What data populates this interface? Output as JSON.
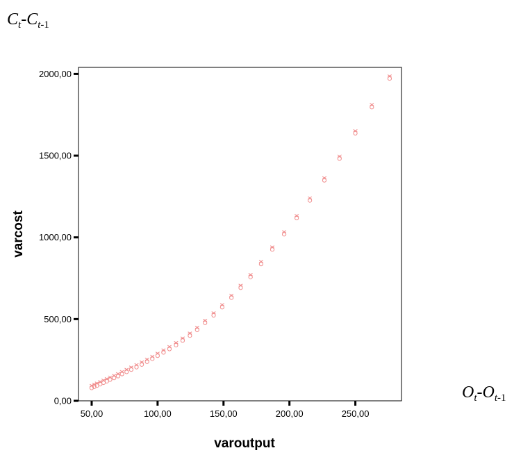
{
  "labels": {
    "y_symbol": "C",
    "y_sub1": "t",
    "y_minus": "-",
    "y_symbol2": "C",
    "y_sub2_var": "t",
    "y_sub2_num": "-1",
    "x_symbol": "O",
    "x_sub1": "t",
    "x_minus": "-",
    "x_symbol2": "O",
    "x_sub2_var": "t",
    "x_sub2_num": "-1"
  },
  "chart_data": {
    "type": "scatter",
    "xlabel": "varoutput",
    "ylabel": "varcost",
    "xlim": [
      40,
      285
    ],
    "ylim": [
      0,
      2040
    ],
    "xticks": [
      50,
      100,
      150,
      200,
      250
    ],
    "xtick_labels": [
      "50,00",
      "100,00",
      "150,00",
      "200,00",
      "250,00"
    ],
    "yticks": [
      0,
      500,
      1000,
      1500,
      2000
    ],
    "ytick_labels": [
      "0,00",
      "500,00",
      "1000,00",
      "1500,00",
      "2000,00"
    ],
    "grid": false,
    "marker_color": "#f08c8c",
    "x": [
      50,
      52,
      54,
      56.5,
      59,
      61.5,
      64,
      67,
      70,
      73,
      76.5,
      80,
      84,
      88,
      92,
      96,
      100,
      104.5,
      109,
      114,
      119,
      124.5,
      130,
      136,
      142.5,
      149,
      156,
      163,
      170.5,
      178.5,
      187,
      196,
      205.5,
      215.5,
      226.5,
      238,
      250,
      262.5,
      276
    ],
    "y": [
      85,
      92,
      99,
      108,
      117,
      126,
      136,
      146,
      157,
      170,
      183,
      197,
      212,
      228,
      245,
      263,
      282,
      302,
      323,
      347,
      375,
      405,
      440,
      483,
      529,
      579,
      637,
      698,
      763,
      843,
      932,
      1025,
      1124,
      1232,
      1355,
      1488,
      1643,
      1803,
      1978
    ]
  }
}
